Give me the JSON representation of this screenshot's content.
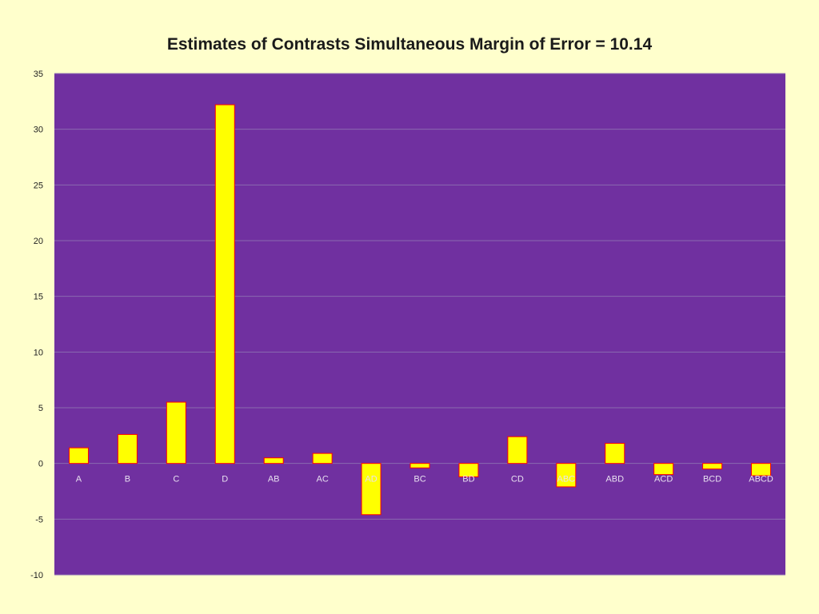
{
  "title": "Estimates of Contrasts Simultaneous Margin of Error = 10.14",
  "colors": {
    "background": "#ffffcc",
    "plot_area": "#7030a0",
    "bar_fill": "#ffff00",
    "bar_border": "#ff0000",
    "gridline": "#8a6ab0"
  },
  "chart_data": {
    "type": "bar",
    "title": "Estimates of Contrasts Simultaneous Margin of Error = 10.14",
    "xlabel": "",
    "ylabel": "",
    "categories": [
      "A",
      "B",
      "C",
      "D",
      "AB",
      "AC",
      "AD",
      "BC",
      "BD",
      "CD",
      "ABC",
      "ABD",
      "ACD",
      "BCD",
      "ABCD"
    ],
    "values": [
      1.4,
      2.6,
      5.5,
      32.2,
      0.5,
      0.9,
      -4.6,
      -0.4,
      -1.2,
      2.4,
      -2.1,
      1.8,
      -1.0,
      -0.5,
      -1.1
    ],
    "ylim": [
      -10,
      35
    ],
    "yticks": [
      -10,
      -5,
      0,
      5,
      10,
      15,
      20,
      25,
      30,
      35
    ],
    "grid": true,
    "legend": "none"
  }
}
